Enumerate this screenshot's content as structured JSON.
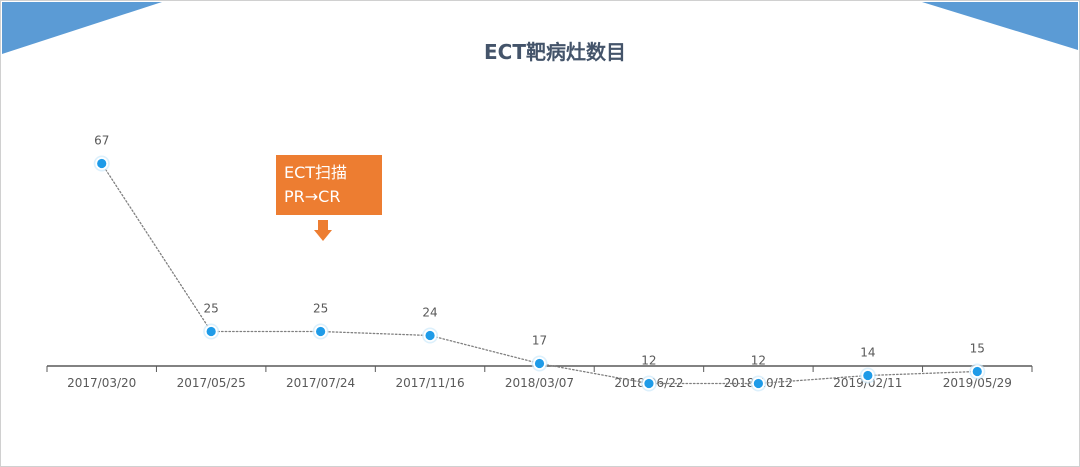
{
  "colors": {
    "accent": "#5b9bd5",
    "callout": "#ed7d31",
    "title": "#44546a",
    "marker": "#1e9be8",
    "line": "#808080",
    "axis": "#595959",
    "label": "#595959"
  },
  "annotation": {
    "line1": "ECT扫描",
    "line2": "PR→CR",
    "arrow_icon": "down-arrow-icon"
  },
  "chart_data": {
    "type": "line",
    "title": "ECT靶病灶数目",
    "xlabel": "",
    "ylabel": "",
    "categories": [
      "2017/03/20",
      "2017/05/25",
      "2017/07/24",
      "2017/11/16",
      "2018/03/07",
      "2018/06/22",
      "2018/10/12",
      "2019/02/11",
      "2019/05/29"
    ],
    "series": [
      {
        "values": [
          67,
          25,
          25,
          24,
          17,
          12,
          12,
          14,
          15
        ]
      }
    ],
    "ylim": [
      0,
      80
    ],
    "grid": false,
    "legend": "none",
    "data_labels": true,
    "line_style": "dotted"
  }
}
